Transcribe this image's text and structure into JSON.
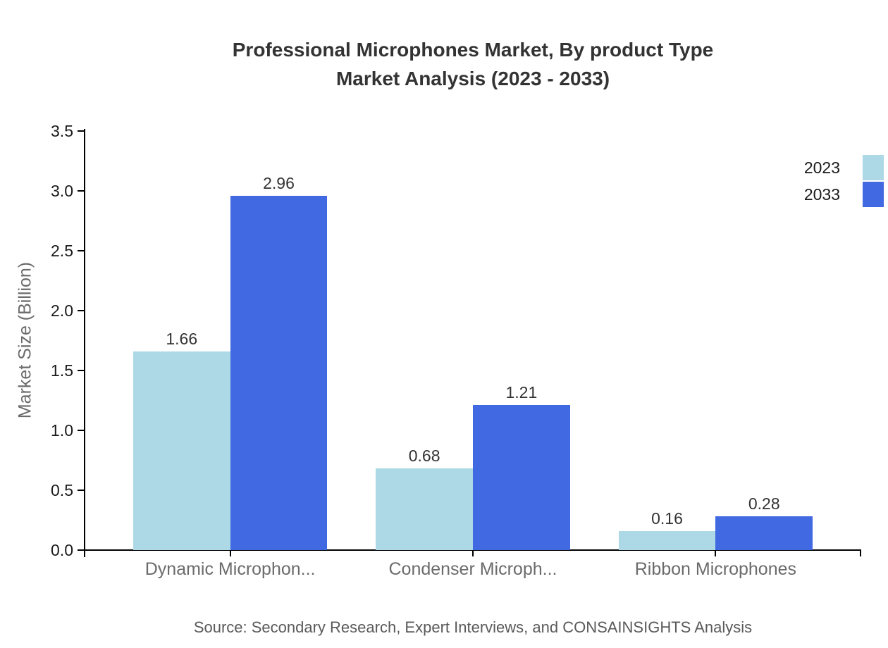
{
  "title_line1": "Professional Microphones Market, By product Type",
  "title_line2": "Market Analysis (2023 - 2033)",
  "source": "Source: Secondary Research, Expert Interviews, and CONSAINSIGHTS Analysis",
  "legend": {
    "position": "top-right",
    "items": [
      {
        "label": "2023",
        "color": "#ADD8E6"
      },
      {
        "label": "2033",
        "color": "#4169E1"
      }
    ]
  },
  "chart_data": {
    "type": "bar",
    "title": "Professional Microphones Market, By product Type Market Analysis (2023 - 2033)",
    "categories": [
      "Dynamic Microphon...",
      "Condenser Microph...",
      "Ribbon Microphones"
    ],
    "series": [
      {
        "name": "2023",
        "color": "#ADD8E6",
        "values": [
          1.66,
          0.68,
          0.16
        ]
      },
      {
        "name": "2033",
        "color": "#4169E1",
        "values": [
          2.96,
          1.21,
          0.28
        ]
      }
    ],
    "xlabel": "",
    "ylabel": "Market Size (Billion)",
    "ylim": [
      0,
      3.5
    ],
    "ytick_step": 0.5,
    "ytick_labels": [
      "0.0",
      "0.5",
      "1.0",
      "1.5",
      "2.0",
      "2.5",
      "3.0",
      "3.5"
    ],
    "grid": false,
    "legend_position": "top-right",
    "data_labels": true,
    "data_label_decimals": 2,
    "axis_color": "#000000",
    "tick_label_color": "#1a1a1a",
    "category_label_color": "#6b6b6b",
    "value_label_color": "#333333"
  }
}
